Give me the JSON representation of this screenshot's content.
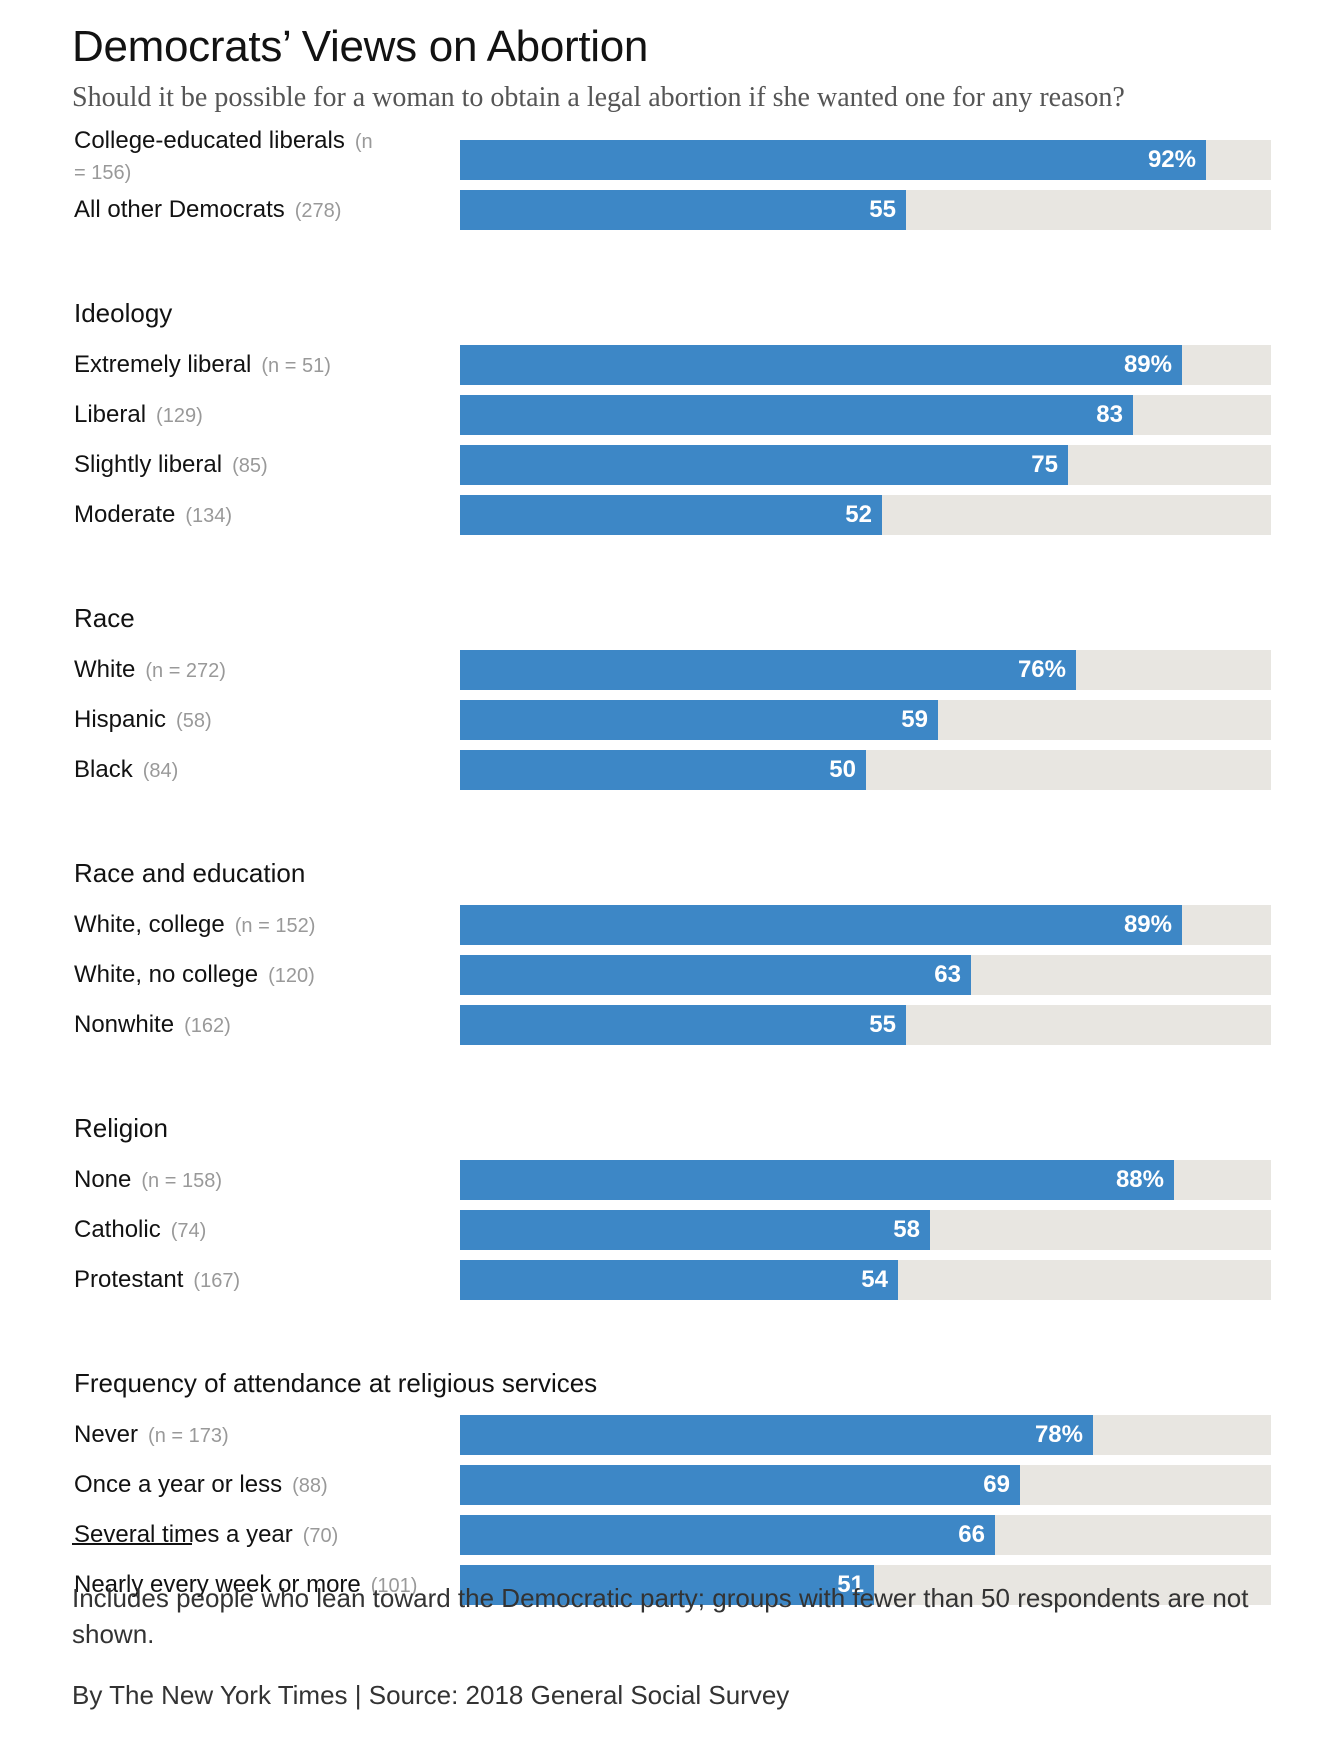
{
  "chart_data": {
    "type": "bar",
    "orientation": "horizontal",
    "title": "Democrats’ Views on Abortion",
    "subtitle": "Should it be possible for a woman to obtain a legal abortion if she wanted one for any reason?",
    "xlim": [
      0,
      100
    ],
    "value_unit": "%",
    "colors": {
      "bar": "#3d87c6",
      "track": "#e8e6e1"
    },
    "groups": [
      {
        "heading": "",
        "rows": [
          {
            "label": "College-educated liberals",
            "n": "(n = 156)",
            "value": 92,
            "display": "92%"
          },
          {
            "label": "All other Democrats",
            "n": "(278)",
            "value": 55,
            "display": "55"
          }
        ]
      },
      {
        "heading": "Ideology",
        "rows": [
          {
            "label": "Extremely liberal",
            "n": "(n = 51)",
            "value": 89,
            "display": "89%"
          },
          {
            "label": "Liberal",
            "n": "(129)",
            "value": 83,
            "display": "83"
          },
          {
            "label": "Slightly liberal",
            "n": "(85)",
            "value": 75,
            "display": "75"
          },
          {
            "label": "Moderate",
            "n": "(134)",
            "value": 52,
            "display": "52"
          }
        ]
      },
      {
        "heading": "Race",
        "rows": [
          {
            "label": "White",
            "n": "(n = 272)",
            "value": 76,
            "display": "76%"
          },
          {
            "label": "Hispanic",
            "n": "(58)",
            "value": 59,
            "display": "59"
          },
          {
            "label": "Black",
            "n": "(84)",
            "value": 50,
            "display": "50"
          }
        ]
      },
      {
        "heading": "Race and education",
        "rows": [
          {
            "label": "White, college",
            "n": "(n = 152)",
            "value": 89,
            "display": "89%"
          },
          {
            "label": "White, no college",
            "n": "(120)",
            "value": 63,
            "display": "63"
          },
          {
            "label": "Nonwhite",
            "n": "(162)",
            "value": 55,
            "display": "55"
          }
        ]
      },
      {
        "heading": "Religion",
        "rows": [
          {
            "label": "None",
            "n": "(n = 158)",
            "value": 88,
            "display": "88%"
          },
          {
            "label": "Catholic",
            "n": "(74)",
            "value": 58,
            "display": "58"
          },
          {
            "label": "Protestant",
            "n": "(167)",
            "value": 54,
            "display": "54"
          }
        ]
      },
      {
        "heading": "Frequency of attendance at religious services",
        "rows": [
          {
            "label": "Never",
            "n": "(n = 173)",
            "value": 78,
            "display": "78%"
          },
          {
            "label": "Once a year or less",
            "n": "(88)",
            "value": 69,
            "display": "69"
          },
          {
            "label": "Several times a year",
            "n": "(70)",
            "value": 66,
            "display": "66"
          },
          {
            "label": "Nearly every week or more",
            "n": "(101)",
            "value": 51,
            "display": "51"
          }
        ]
      }
    ]
  },
  "footer": {
    "note": "Includes people who lean toward the Democratic party; groups with fewer than 50 respondents are not shown.",
    "credit": "By The New York Times | Source: 2018 General Social Survey"
  }
}
